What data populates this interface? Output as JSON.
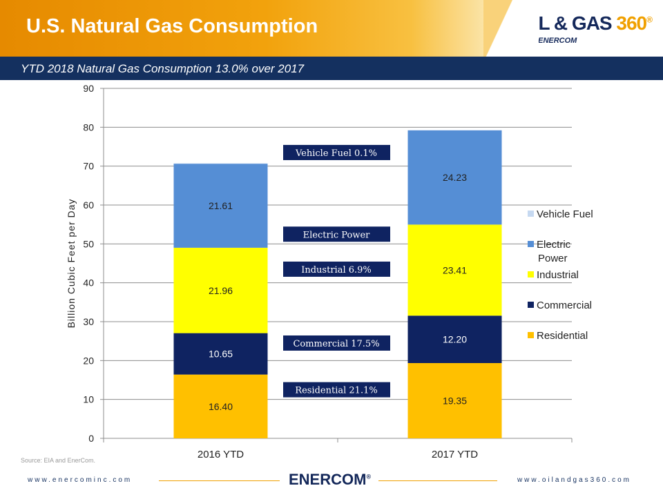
{
  "header": {
    "title": "U.S. Natural Gas Consumption",
    "subtitle": "YTD 2018 Natural Gas Consumption 13.0% over 2017",
    "logo_main_a": "OIL & GAS ",
    "logo_main_b": "360",
    "logo_reg": "®",
    "logo_sub": "By ENERCOM"
  },
  "colors": {
    "residential": "#ffc000",
    "commercial": "#0f2361",
    "industrial": "#ffff00",
    "electric_power": "#558ed5",
    "vehicle_fuel": "#c6d9f1",
    "annotation_box": "#0f2361",
    "brand_navy": "#14305f",
    "brand_orange": "#f0a000"
  },
  "chart_data": {
    "type": "bar",
    "stacked": true,
    "categories": [
      "2016 YTD",
      "2017 YTD"
    ],
    "series": [
      {
        "name": "Residential",
        "values": [
          16.4,
          19.35
        ],
        "labels": [
          "16.40",
          "19.35"
        ],
        "color_key": "residential",
        "label_color": "#222222"
      },
      {
        "name": "Commercial",
        "values": [
          10.65,
          12.2
        ],
        "labels": [
          "10.65",
          "12.20"
        ],
        "color_key": "commercial",
        "label_color": "#ffffff"
      },
      {
        "name": "Industrial",
        "values": [
          21.96,
          23.41
        ],
        "labels": [
          "21.96",
          "23.41"
        ],
        "color_key": "industrial",
        "label_color": "#222222"
      },
      {
        "name": "Electric Power",
        "values": [
          21.61,
          24.23
        ],
        "labels": [
          "21.61",
          "24.23"
        ],
        "color_key": "electric_power",
        "label_color": "#222222"
      },
      {
        "name": "Vehicle Fuel",
        "values": [
          0.1,
          0.1
        ],
        "labels": [
          "",
          ""
        ],
        "color_key": "vehicle_fuel",
        "label_color": "#222222"
      }
    ],
    "ylabel": "Billion Cubic Feet per Day",
    "ylim": [
      0,
      90
    ],
    "yticks": [
      0,
      10,
      20,
      30,
      40,
      50,
      60,
      70,
      80,
      90
    ],
    "grid": true,
    "legend": {
      "position": "right",
      "entries": [
        {
          "lines": [
            "Vehicle Fuel"
          ],
          "color_key": "vehicle_fuel"
        },
        {
          "lines": [
            "Electric",
            "Power"
          ],
          "color_key": "electric_power"
        },
        {
          "lines": [
            "Industrial"
          ],
          "color_key": "industrial"
        },
        {
          "lines": [
            "Commercial"
          ],
          "color_key": "commercial"
        },
        {
          "lines": [
            "Residential"
          ],
          "color_key": "residential"
        }
      ]
    },
    "annotations": [
      {
        "text": "Vehicle Fuel 0.1%",
        "y": 73.5
      },
      {
        "text": "Electric Power",
        "y": 52.5
      },
      {
        "text": "Industrial 6.9%",
        "y": 43.5
      },
      {
        "text": "Commercial 17.5%",
        "y": 24.5
      },
      {
        "text": "Residential 21.1%",
        "y": 12.5
      }
    ]
  },
  "footer": {
    "source": "Source: EIA and EnerCom.",
    "left_url": "www.enercominc.com",
    "right_url": "www.oilandgas360.com",
    "logo": "ENERCOM",
    "logo_reg": "®"
  }
}
